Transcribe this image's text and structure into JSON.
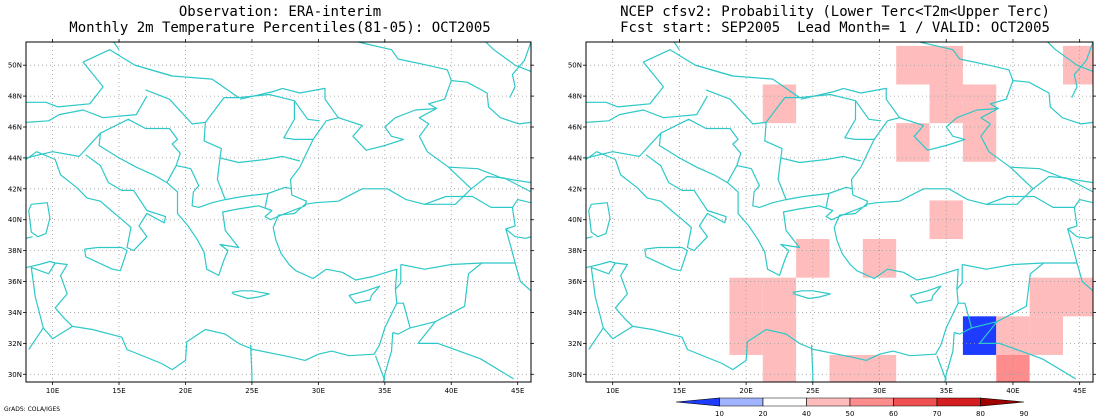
{
  "left_panel": {
    "title_line1": "Observation: ERA-interim",
    "title_line2": "Monthly 2m Temperature Percentiles(81-05): OCT2005"
  },
  "right_panel": {
    "title_line1": "NCEP cfsv2: Probability (Lower Terc<T2m<Upper Terc)",
    "title_line2": "Fcst start: SEP2005  Lead Month= 1 / VALID: OCT2005"
  },
  "axes": {
    "lon_ticks": [
      "10E",
      "15E",
      "20E",
      "25E",
      "30E",
      "35E",
      "40E",
      "45E"
    ],
    "lat_ticks": [
      "30N",
      "32N",
      "34N",
      "36N",
      "38N",
      "40N",
      "42N",
      "44N",
      "46N",
      "48N",
      "50N"
    ],
    "lon_range": [
      8,
      46
    ],
    "lat_range": [
      29.5,
      51.5
    ]
  },
  "colorbar": {
    "labels": [
      "10",
      "20",
      "40",
      "50",
      "60",
      "70",
      "80",
      "90"
    ],
    "colors": [
      "#1e3cff",
      "#a0b4ff",
      "#ffffff",
      "#ffbcbc",
      "#ff8c8c",
      "#f05050",
      "#d21e1e",
      "#a00000"
    ]
  },
  "prob_cells": [
    {
      "lon": 22.5,
      "lat": 47.5,
      "color": "#ffbcbc"
    },
    {
      "lon": 32.5,
      "lat": 50,
      "color": "#ffbcbc"
    },
    {
      "lon": 35,
      "lat": 50,
      "color": "#ffbcbc"
    },
    {
      "lon": 35,
      "lat": 47.5,
      "color": "#ffbcbc"
    },
    {
      "lon": 37.5,
      "lat": 47.5,
      "color": "#ffbcbc"
    },
    {
      "lon": 32.5,
      "lat": 45,
      "color": "#ffbcbc"
    },
    {
      "lon": 37.5,
      "lat": 45,
      "color": "#ffbcbc"
    },
    {
      "lon": 45,
      "lat": 50,
      "color": "#ffbcbc"
    },
    {
      "lon": 35,
      "lat": 40,
      "color": "#ffbcbc"
    },
    {
      "lon": 25,
      "lat": 37.5,
      "color": "#ffbcbc"
    },
    {
      "lon": 30,
      "lat": 37.5,
      "color": "#ffbcbc"
    },
    {
      "lon": 20,
      "lat": 35,
      "color": "#ffbcbc"
    },
    {
      "lon": 22.5,
      "lat": 35,
      "color": "#ffbcbc"
    },
    {
      "lon": 20,
      "lat": 32.5,
      "color": "#ffbcbc"
    },
    {
      "lon": 22.5,
      "lat": 32.5,
      "color": "#ffbcbc"
    },
    {
      "lon": 22.5,
      "lat": 30,
      "color": "#ffbcbc"
    },
    {
      "lon": 27.5,
      "lat": 30,
      "color": "#ffbcbc"
    },
    {
      "lon": 30,
      "lat": 30,
      "color": "#ffbcbc"
    },
    {
      "lon": 37.5,
      "lat": 32.5,
      "color": "#1e3cff"
    },
    {
      "lon": 40,
      "lat": 32.5,
      "color": "#ffbcbc"
    },
    {
      "lon": 42.5,
      "lat": 32.5,
      "color": "#ffbcbc"
    },
    {
      "lon": 42.5,
      "lat": 35,
      "color": "#ffbcbc"
    },
    {
      "lon": 45,
      "lat": 35,
      "color": "#ffbcbc"
    },
    {
      "lon": 40,
      "lat": 30,
      "color": "#ff8c8c"
    }
  ],
  "coastline_color": "#2ec8c8",
  "credit": "GrADS: COLA/IGES"
}
